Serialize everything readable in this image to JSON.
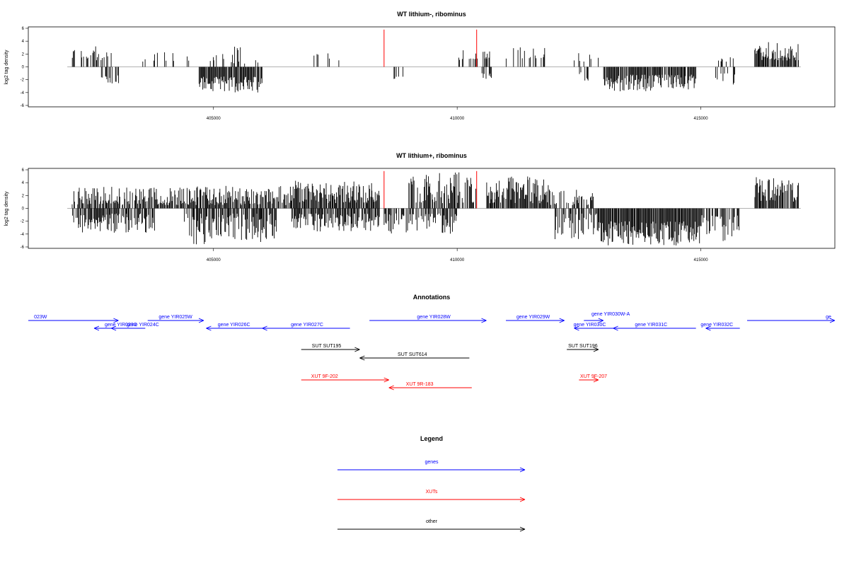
{
  "chart_data": [
    {
      "type": "bar",
      "title": "WT lithium-, ribominus",
      "ylabel": "log2 tag density",
      "xlim": [
        401200,
        417750
      ],
      "ylim": [
        -6,
        6
      ],
      "yticks": [
        "6",
        "4",
        "2",
        "0",
        "-2",
        "-4",
        "-6"
      ],
      "xticks": [
        "405000",
        "410000",
        "415000"
      ],
      "colors": {
        "bars": "#000000",
        "highlight": "#ff0000",
        "baseline": "#999999"
      },
      "highlight_x": [
        408500,
        410400
      ],
      "highlight_values": [
        5.8,
        5.8
      ],
      "segments": [
        {
          "start": 402100,
          "end": 402900,
          "density": 0.35,
          "sign": 1,
          "min": 1.0,
          "max": 3.2,
          "seed": 11
        },
        {
          "start": 402700,
          "end": 403100,
          "density": 0.4,
          "sign": -1,
          "min": 1.2,
          "max": 2.8,
          "seed": 12
        },
        {
          "start": 403500,
          "end": 404500,
          "density": 0.15,
          "sign": 1,
          "min": 0.8,
          "max": 2.4,
          "seed": 13
        },
        {
          "start": 404700,
          "end": 406000,
          "density": 0.85,
          "sign": -1,
          "min": 1.5,
          "max": 4.0,
          "seed": 14
        },
        {
          "start": 404900,
          "end": 406000,
          "density": 0.2,
          "sign": 1,
          "min": 0.5,
          "max": 3.4,
          "seed": 15
        },
        {
          "start": 407000,
          "end": 407800,
          "density": 0.12,
          "sign": 1,
          "min": 0.8,
          "max": 2.7,
          "seed": 16
        },
        {
          "start": 408700,
          "end": 408900,
          "density": 0.3,
          "sign": -1,
          "min": 1.5,
          "max": 2.0,
          "seed": 17
        },
        {
          "start": 410000,
          "end": 410700,
          "density": 0.2,
          "sign": 1,
          "min": 1.0,
          "max": 2.8,
          "seed": 18
        },
        {
          "start": 410500,
          "end": 410700,
          "density": 0.3,
          "sign": -1,
          "min": 1.0,
          "max": 1.9,
          "seed": 19
        },
        {
          "start": 411000,
          "end": 411800,
          "density": 0.35,
          "sign": 1,
          "min": 1.2,
          "max": 3.1,
          "seed": 20
        },
        {
          "start": 412400,
          "end": 412900,
          "density": 0.3,
          "sign": 1,
          "min": 0.8,
          "max": 2.6,
          "seed": 21
        },
        {
          "start": 412500,
          "end": 412700,
          "density": 0.4,
          "sign": -1,
          "min": 0.8,
          "max": 2.5,
          "seed": 22
        },
        {
          "start": 413000,
          "end": 414900,
          "density": 0.9,
          "sign": -1,
          "min": 1.2,
          "max": 3.8,
          "seed": 23
        },
        {
          "start": 415300,
          "end": 415700,
          "density": 0.4,
          "sign": -1,
          "min": 1.0,
          "max": 3.0,
          "seed": 24
        },
        {
          "start": 415300,
          "end": 415700,
          "density": 0.2,
          "sign": 1,
          "min": 0.8,
          "max": 1.6,
          "seed": 25
        },
        {
          "start": 416100,
          "end": 417000,
          "density": 0.9,
          "sign": 1,
          "min": 1.0,
          "max": 3.9,
          "seed": 26
        }
      ]
    },
    {
      "type": "bar",
      "title": "WT lithium+, ribominus",
      "ylabel": "log2 tag density",
      "xlim": [
        401200,
        417750
      ],
      "ylim": [
        -6,
        6
      ],
      "yticks": [
        "6",
        "4",
        "2",
        "0",
        "-2",
        "-4",
        "-6"
      ],
      "xticks": [
        "405000",
        "410000",
        "415000"
      ],
      "colors": {
        "bars": "#000000",
        "highlight": "#ff0000",
        "baseline": "#999999"
      },
      "highlight_x": [
        408500,
        410400
      ],
      "highlight_values": [
        5.8,
        5.8
      ],
      "segments": [
        {
          "start": 402100,
          "end": 403600,
          "density": 0.8,
          "sign": 1,
          "min": 0.5,
          "max": 3.4,
          "seed": 31
        },
        {
          "start": 402100,
          "end": 403800,
          "density": 0.75,
          "sign": -1,
          "min": 0.8,
          "max": 3.8,
          "seed": 32
        },
        {
          "start": 403600,
          "end": 406600,
          "density": 0.8,
          "sign": 1,
          "min": 0.5,
          "max": 3.5,
          "seed": 33
        },
        {
          "start": 404400,
          "end": 406300,
          "density": 0.75,
          "sign": -1,
          "min": 0.8,
          "max": 5.6,
          "seed": 34
        },
        {
          "start": 406600,
          "end": 408400,
          "density": 0.9,
          "sign": 1,
          "min": 0.8,
          "max": 4.3,
          "seed": 35
        },
        {
          "start": 406600,
          "end": 408400,
          "density": 0.8,
          "sign": -1,
          "min": 0.8,
          "max": 3.6,
          "seed": 36
        },
        {
          "start": 408500,
          "end": 410000,
          "density": 0.75,
          "sign": -1,
          "min": 0.8,
          "max": 4.0,
          "seed": 37
        },
        {
          "start": 409000,
          "end": 410400,
          "density": 0.7,
          "sign": 1,
          "min": 0.8,
          "max": 5.6,
          "seed": 38
        },
        {
          "start": 410600,
          "end": 411900,
          "density": 0.95,
          "sign": 1,
          "min": 0.8,
          "max": 5.0,
          "seed": 39
        },
        {
          "start": 411900,
          "end": 412800,
          "density": 0.5,
          "sign": 1,
          "min": 0.5,
          "max": 3.0,
          "seed": 40
        },
        {
          "start": 412000,
          "end": 412900,
          "density": 0.6,
          "sign": -1,
          "min": 0.8,
          "max": 4.8,
          "seed": 41
        },
        {
          "start": 412900,
          "end": 415000,
          "density": 1.0,
          "sign": -1,
          "min": 2.0,
          "max": 5.8,
          "seed": 42
        },
        {
          "start": 415000,
          "end": 415800,
          "density": 0.6,
          "sign": -1,
          "min": 1.0,
          "max": 5.2,
          "seed": 43
        },
        {
          "start": 416100,
          "end": 417000,
          "density": 0.95,
          "sign": 1,
          "min": 1.0,
          "max": 5.1,
          "seed": 44
        }
      ]
    }
  ],
  "annotations": {
    "title": "Annotations",
    "genes": [
      {
        "label": "023W",
        "start": 401200,
        "end": 403050,
        "strand": "+",
        "row": 0,
        "label_x": 401450
      },
      {
        "label": "gene YIR023C",
        "start": 402550,
        "end": 403050,
        "strand": "-",
        "row": 1,
        "label_x": 403100
      },
      {
        "label": "gene YIR024C",
        "start": 402900,
        "end": 403600,
        "strand": "-",
        "row": 1,
        "label_x": 403550
      },
      {
        "label": "gene YIR025W",
        "start": 403650,
        "end": 404800,
        "strand": "+",
        "row": 0,
        "label_x": 404220
      },
      {
        "label": "gene YIR026C",
        "start": 404850,
        "end": 406000,
        "strand": "-",
        "row": 1,
        "label_x": 405420
      },
      {
        "label": "gene YIR027C",
        "start": 406000,
        "end": 407800,
        "strand": "-",
        "row": 1,
        "label_x": 406920
      },
      {
        "label": "gene YIR028W",
        "start": 408200,
        "end": 410600,
        "strand": "+",
        "row": 0,
        "label_x": 409520
      },
      {
        "label": "gene YIR029W",
        "start": 411000,
        "end": 412200,
        "strand": "+",
        "row": 0,
        "label_x": 411560
      },
      {
        "label": "gene YIR030W-A",
        "start": 412600,
        "end": 413000,
        "strand": "+",
        "row": 0,
        "label_x": 413150,
        "label_above": true
      },
      {
        "label": "gene YIR030C",
        "start": 412400,
        "end": 413200,
        "strand": "-",
        "row": 1,
        "label_x": 412720
      },
      {
        "label": "gene YIR031C",
        "start": 413200,
        "end": 414900,
        "strand": "-",
        "row": 1,
        "label_x": 413980
      },
      {
        "label": "gene YIR032C",
        "start": 415100,
        "end": 415800,
        "strand": "-",
        "row": 1,
        "label_x": 415330
      },
      {
        "label": "ge",
        "start": 415950,
        "end": 417750,
        "strand": "+",
        "row": 0,
        "label_x": 417620
      }
    ],
    "other": [
      {
        "label": "SUT SUT195",
        "start": 406800,
        "end": 408000,
        "strand": "+",
        "row": 0,
        "label_x": 407320
      },
      {
        "label": "SUT SUT614",
        "start": 408000,
        "end": 410250,
        "strand": "-",
        "row": 1,
        "label_x": 409080
      },
      {
        "label": "SUT SUT196",
        "start": 412250,
        "end": 412900,
        "strand": "+",
        "row": 0,
        "label_x": 412580
      }
    ],
    "xuts": [
      {
        "label": "XUT 9F-202",
        "start": 406800,
        "end": 408600,
        "strand": "+",
        "row": 0,
        "label_x": 407280
      },
      {
        "label": "XUT 9R-183",
        "start": 408600,
        "end": 410300,
        "strand": "-",
        "row": 1,
        "label_x": 409230
      },
      {
        "label": "XUT 9F-207",
        "start": 412500,
        "end": 412900,
        "strand": "+",
        "row": 0,
        "label_x": 412800
      }
    ]
  },
  "legend": {
    "title": "Legend",
    "items": [
      {
        "label": "genes",
        "color": "#0000ff"
      },
      {
        "label": "XUTs",
        "color": "#ff0000"
      },
      {
        "label": "other",
        "color": "#000000"
      }
    ]
  }
}
